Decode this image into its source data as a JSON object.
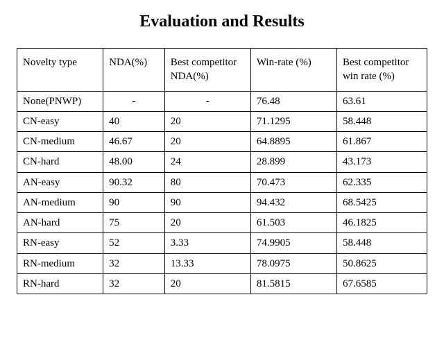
{
  "title": "Evaluation and Results",
  "table": {
    "columns": [
      "Novelty type",
      "NDA(%)",
      "Best competitor NDA(%)",
      "Win-rate (%)",
      "Best competitor win rate (%)"
    ],
    "rows": [
      [
        "None(PNWP)",
        "-",
        "-",
        "76.48",
        "63.61"
      ],
      [
        "CN-easy",
        "40",
        "20",
        "71.1295",
        "58.448"
      ],
      [
        "CN-medium",
        "46.67",
        "20",
        "64.8895",
        "61.867"
      ],
      [
        "CN-hard",
        "48.00",
        "24",
        "28.899",
        "43.173"
      ],
      [
        "AN-easy",
        "90.32",
        "80",
        "70.473",
        "62.335"
      ],
      [
        "AN-medium",
        "90",
        "90",
        "94.432",
        "68.5425"
      ],
      [
        "AN-hard",
        "75",
        "20",
        "61.503",
        "46.1825"
      ],
      [
        "RN-easy",
        "52",
        "3.33",
        "74.9905",
        "58.448"
      ],
      [
        "RN-medium",
        "32",
        "13.33",
        "78.0975",
        "50.8625"
      ],
      [
        "RN-hard",
        "32",
        "20",
        "81.5815",
        "67.6585"
      ]
    ],
    "border_color": "#000000",
    "background_color": "#ffffff",
    "title_fontsize": 24,
    "body_fontsize": 15,
    "dash_rows_centered": [
      0
    ]
  }
}
